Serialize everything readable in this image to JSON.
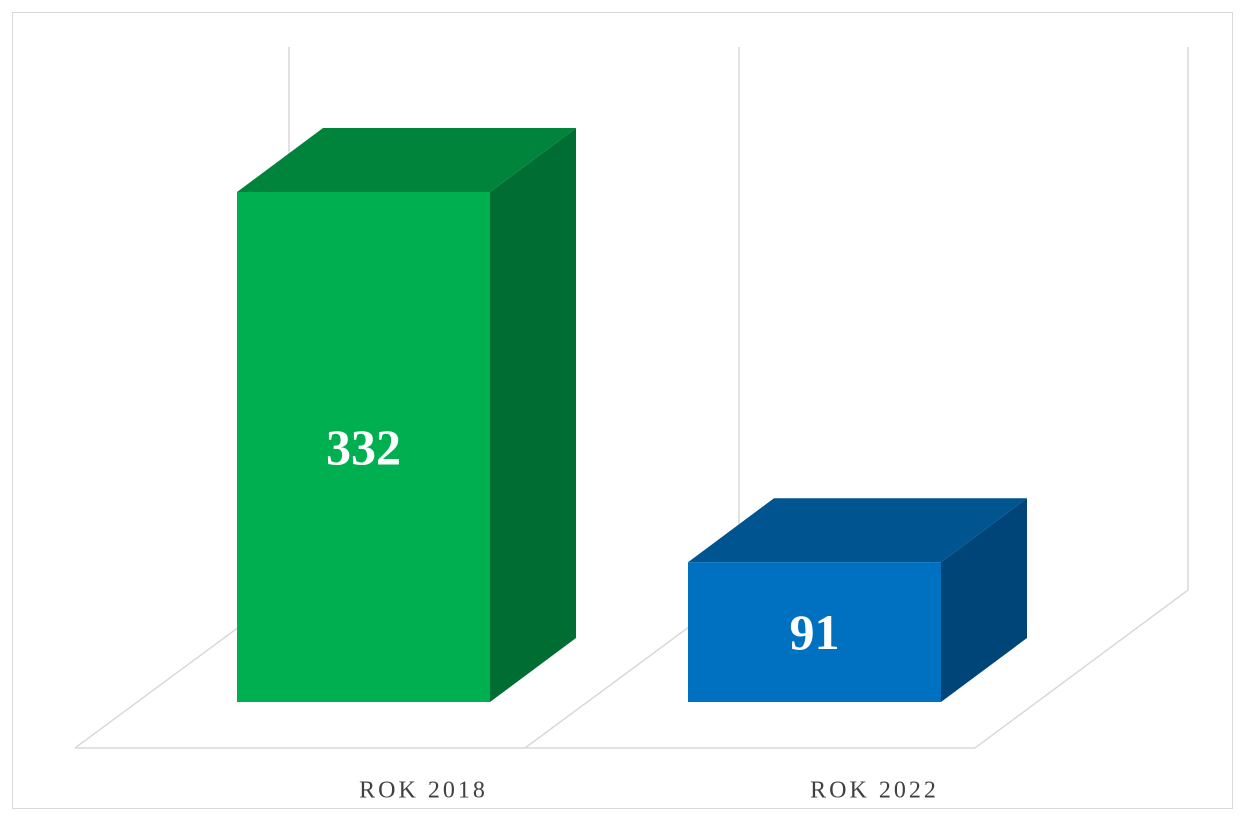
{
  "chart_data": {
    "type": "bar3d",
    "categories": [
      "ROK 2018",
      "ROK 2022"
    ],
    "values": [
      332,
      91
    ],
    "colors": [
      "#00b050",
      "#0070c0"
    ]
  }
}
